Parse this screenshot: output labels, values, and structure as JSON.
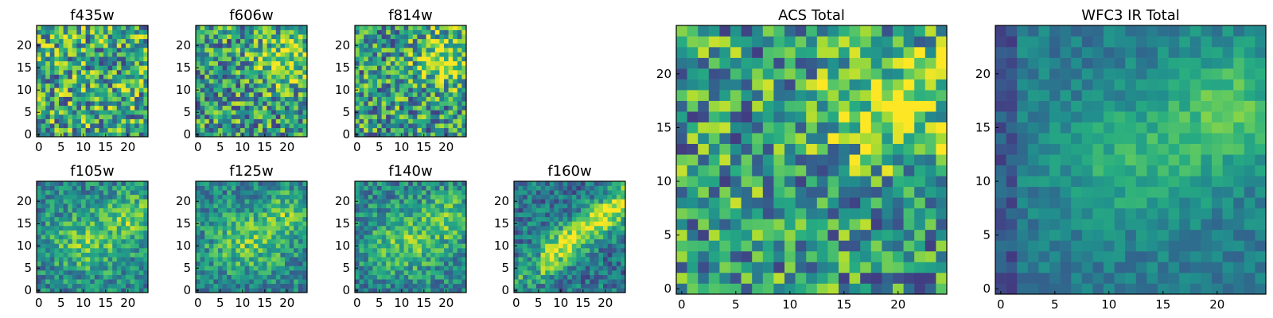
{
  "figure": {
    "panels": [
      {
        "title": "f435w",
        "pattern": "noise",
        "seed": 11
      },
      {
        "title": "f606w",
        "pattern": "noise_blob",
        "seed": 23
      },
      {
        "title": "f814w",
        "pattern": "noise_blob",
        "seed": 37
      },
      {
        "title": "f105w",
        "pattern": "blob",
        "seed": 41
      },
      {
        "title": "f125w",
        "pattern": "blob",
        "seed": 53
      },
      {
        "title": "f140w",
        "pattern": "blob",
        "seed": 67
      },
      {
        "title": "f160w",
        "pattern": "diag_blob",
        "seed": 71
      },
      {
        "title": "ACS Total",
        "pattern": "noise_blob",
        "seed": 83
      },
      {
        "title": "WFC3 IR Total",
        "pattern": "smooth_blob",
        "seed": 97
      }
    ],
    "small_ticks": {
      "x": [
        "0",
        "5",
        "10",
        "15",
        "20"
      ],
      "y": [
        "0",
        "5",
        "10",
        "15",
        "20"
      ]
    },
    "large_ticks": {
      "x": [
        "0",
        "5",
        "10",
        "15",
        "20"
      ],
      "y": [
        "0",
        "5",
        "10",
        "15",
        "20"
      ]
    }
  },
  "chart_data": {
    "type": "heatmap",
    "grid_size": [
      25,
      25
    ],
    "colormap": "viridis",
    "xlim": [
      -0.5,
      24.5
    ],
    "ylim": [
      -0.5,
      24.5
    ],
    "origin": "lower",
    "panels": [
      "f435w",
      "f606w",
      "f814w",
      "f105w",
      "f125w",
      "f140w",
      "f160w",
      "ACS Total",
      "WFC3 IR Total"
    ]
  }
}
